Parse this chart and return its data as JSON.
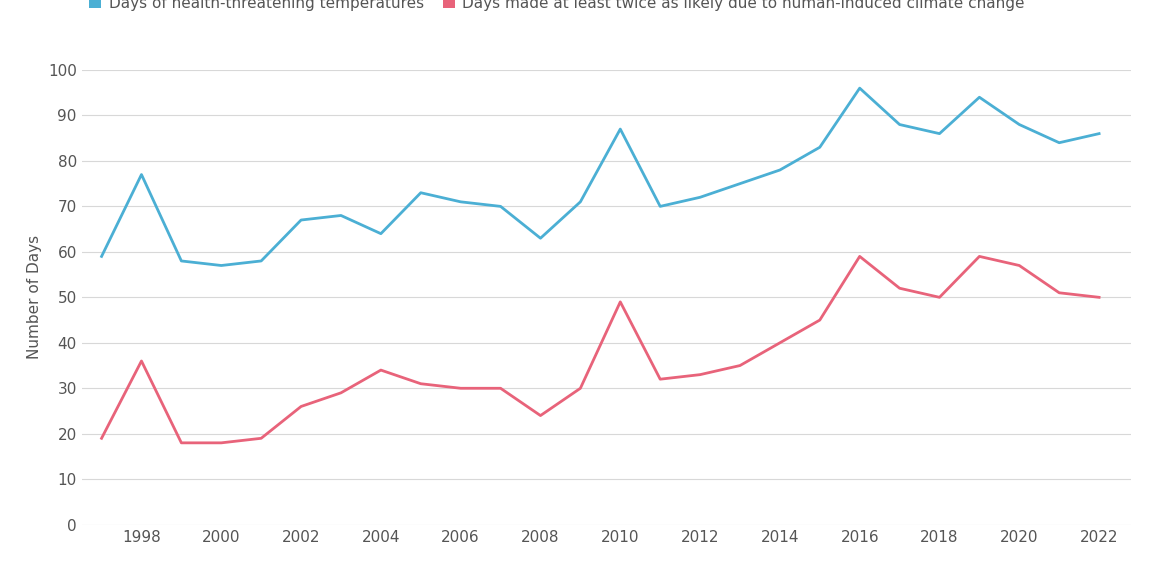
{
  "years": [
    1997,
    1998,
    1999,
    2000,
    2001,
    2002,
    2003,
    2004,
    2005,
    2006,
    2007,
    2008,
    2009,
    2010,
    2011,
    2012,
    2013,
    2014,
    2015,
    2016,
    2017,
    2018,
    2019,
    2020,
    2021,
    2022
  ],
  "blue_values": [
    59,
    77,
    58,
    57,
    58,
    67,
    68,
    64,
    73,
    71,
    70,
    63,
    71,
    87,
    70,
    72,
    75,
    78,
    83,
    96,
    88,
    86,
    94,
    88,
    84,
    86
  ],
  "pink_values": [
    19,
    36,
    18,
    18,
    19,
    26,
    29,
    34,
    31,
    30,
    30,
    24,
    30,
    49,
    32,
    33,
    35,
    40,
    45,
    59,
    52,
    50,
    59,
    57,
    51,
    50
  ],
  "blue_color": "#4bafd4",
  "pink_color": "#e8637a",
  "ylabel": "Number of Days",
  "ylim": [
    0,
    100
  ],
  "yticks": [
    0,
    10,
    20,
    30,
    40,
    50,
    60,
    70,
    80,
    90,
    100
  ],
  "xtick_labels": [
    "1998",
    "2000",
    "2002",
    "2004",
    "2006",
    "2008",
    "2010",
    "2012",
    "2014",
    "2016",
    "2018",
    "2020",
    "2022"
  ],
  "legend_blue": "Days of health-threatening temperatures",
  "legend_pink": "Days made at least twice as likely due to human-induced climate change",
  "bg_color": "#ffffff",
  "grid_color": "#d8d8d8",
  "line_width": 2.0,
  "text_color": "#555555",
  "label_fontsize": 11,
  "tick_fontsize": 11,
  "legend_fontsize": 11
}
